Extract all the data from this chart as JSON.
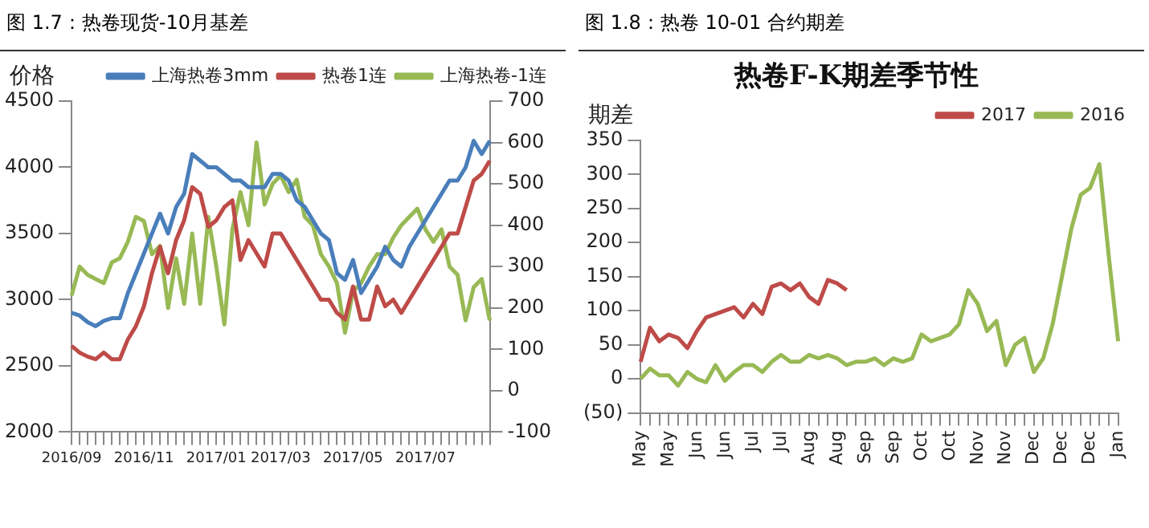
{
  "chart_data": [
    {
      "type": "line",
      "title": "图 1.7：热卷现货-10月基差",
      "ylabel": "价格",
      "categories": [
        "2016/09",
        null,
        null,
        null,
        null,
        null,
        null,
        null,
        null,
        "2016/11",
        null,
        null,
        null,
        null,
        null,
        null,
        null,
        null,
        "2017/01",
        null,
        null,
        null,
        null,
        null,
        null,
        null,
        "2017/03",
        null,
        null,
        null,
        null,
        null,
        null,
        null,
        null,
        "2017/05",
        null,
        null,
        null,
        null,
        null,
        null,
        null,
        null,
        "2017/07",
        null,
        null,
        null,
        null,
        null,
        null,
        null,
        null
      ],
      "series": [
        {
          "name": "上海热卷3mm",
          "color": "#4a7ebb",
          "values": [
            2900,
            2880,
            2830,
            2800,
            2840,
            2860,
            2860,
            3050,
            3200,
            3350,
            3500,
            3650,
            3500,
            3700,
            3800,
            4100,
            4050,
            4000,
            4000,
            3950,
            3900,
            3900,
            3850,
            3850,
            3850,
            3950,
            3950,
            3900,
            3750,
            3700,
            3600,
            3500,
            3450,
            3200,
            3150,
            3300,
            3050,
            3150,
            3250,
            3400,
            3300,
            3250,
            3400,
            3500,
            3600,
            3700,
            3800,
            3900,
            3900,
            4000,
            4200,
            4100,
            4200
          ]
        },
        {
          "name": "热卷1连",
          "color": "#be4b48",
          "values": [
            2650,
            2600,
            2570,
            2550,
            2600,
            2550,
            2550,
            2700,
            2800,
            2950,
            3200,
            3400,
            3200,
            3450,
            3600,
            3850,
            3800,
            3550,
            3600,
            3700,
            3750,
            3300,
            3450,
            3350,
            3250,
            3500,
            3500,
            3400,
            3300,
            3200,
            3100,
            3000,
            3000,
            2900,
            2850,
            3100,
            2850,
            2850,
            3100,
            2950,
            3000,
            2900,
            3000,
            3100,
            3200,
            3300,
            3400,
            3500,
            3500,
            3700,
            3900,
            3950,
            4050
          ]
        },
        {
          "name": "上海热卷-1连",
          "color": "#98b954",
          "axis": "y2",
          "values": [
            230,
            300,
            280,
            270,
            260,
            310,
            320,
            360,
            420,
            410,
            330,
            350,
            200,
            320,
            210,
            380,
            210,
            420,
            300,
            160,
            390,
            480,
            400,
            600,
            450,
            500,
            520,
            480,
            510,
            420,
            400,
            330,
            300,
            260,
            140,
            240,
            260,
            300,
            330,
            330,
            370,
            400,
            420,
            440,
            390,
            360,
            390,
            300,
            280,
            170,
            250,
            270,
            170
          ]
        }
      ],
      "ylim": [
        2000,
        4500
      ],
      "yticks": [
        2000,
        2500,
        3000,
        3500,
        4000,
        4500
      ],
      "y2lim": [
        -100,
        700
      ],
      "y2ticks": [
        -100,
        0,
        100,
        200,
        300,
        400,
        500,
        600,
        700
      ],
      "legend": "top"
    },
    {
      "type": "line",
      "title": "图 1.8：热卷 10-01 合约期差",
      "subtitle": "热卷F-K期差季节性",
      "ylabel": "期差",
      "categories": [
        "May",
        null,
        null,
        "May",
        null,
        null,
        "Jun",
        null,
        null,
        "Jun",
        null,
        null,
        "Jul",
        null,
        null,
        "Jul",
        null,
        null,
        "Aug",
        null,
        null,
        "Aug",
        null,
        null,
        "Sep",
        null,
        null,
        "Sep",
        null,
        null,
        "Oct",
        null,
        null,
        "Oct",
        null,
        null,
        "Nov",
        null,
        null,
        "Nov",
        null,
        null,
        "Dec",
        null,
        null,
        "Dec",
        null,
        null,
        "Dec",
        null,
        null,
        "Jan"
      ],
      "series": [
        {
          "name": "2017",
          "color": "#be4b48",
          "values": [
            25,
            75,
            55,
            65,
            60,
            45,
            70,
            90,
            95,
            100,
            105,
            90,
            110,
            95,
            135,
            140,
            130,
            140,
            120,
            110,
            145,
            140,
            130,
            null,
            null,
            null,
            null,
            null,
            null,
            null,
            null,
            null,
            null,
            null,
            null,
            null,
            null,
            null,
            null,
            null,
            null,
            null,
            null,
            null,
            null,
            null,
            null,
            null,
            null,
            null,
            null,
            null
          ]
        },
        {
          "name": "2016",
          "color": "#98b954",
          "values": [
            0,
            15,
            5,
            5,
            -10,
            10,
            0,
            -5,
            20,
            -3,
            10,
            20,
            20,
            10,
            25,
            35,
            25,
            25,
            35,
            30,
            35,
            30,
            20,
            25,
            25,
            30,
            20,
            30,
            25,
            30,
            65,
            55,
            60,
            65,
            80,
            130,
            110,
            70,
            85,
            20,
            50,
            60,
            10,
            30,
            80,
            150,
            220,
            270,
            280,
            315,
            180,
            55
          ]
        }
      ],
      "ylim": [
        -50,
        350
      ],
      "yticks": [
        {
          "value": -50,
          "label": "(50)"
        },
        0,
        50,
        100,
        150,
        200,
        250,
        300,
        350
      ],
      "legend": "top"
    }
  ]
}
